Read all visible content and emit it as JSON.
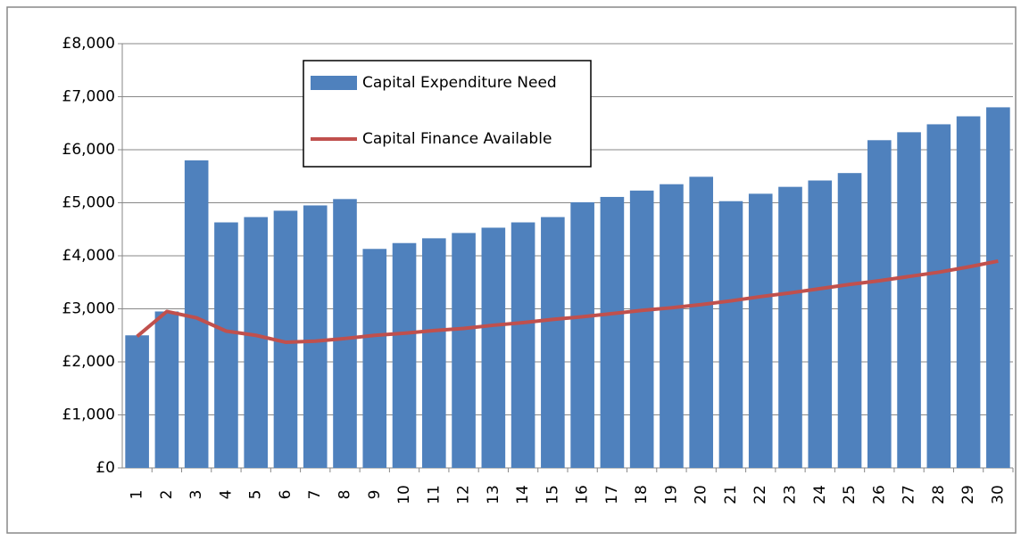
{
  "chart_data": {
    "type": "bar",
    "categories": [
      "1",
      "2",
      "3",
      "4",
      "5",
      "6",
      "7",
      "8",
      "9",
      "10",
      "11",
      "12",
      "13",
      "14",
      "15",
      "16",
      "17",
      "18",
      "19",
      "20",
      "21",
      "22",
      "23",
      "24",
      "25",
      "26",
      "27",
      "28",
      "29",
      "30"
    ],
    "series": [
      {
        "name": "Capital Expenditure Need",
        "type": "bar",
        "color": "#4f81bd",
        "values": [
          2500,
          2950,
          5800,
          4630,
          4730,
          4850,
          4950,
          5070,
          4130,
          4240,
          4330,
          4430,
          4530,
          4630,
          4730,
          5010,
          5110,
          5230,
          5350,
          5490,
          5030,
          5170,
          5300,
          5420,
          5560,
          6180,
          6330,
          6480,
          6630,
          6800
        ]
      },
      {
        "name": "Capital Finance Available",
        "type": "line",
        "color": "#c0504d",
        "values": [
          2480,
          2950,
          2830,
          2580,
          2500,
          2370,
          2390,
          2440,
          2500,
          2540,
          2590,
          2630,
          2690,
          2740,
          2800,
          2850,
          2910,
          2970,
          3020,
          3080,
          3150,
          3230,
          3300,
          3380,
          3460,
          3530,
          3610,
          3690,
          3790,
          3900
        ]
      }
    ],
    "ylim": [
      0,
      8000
    ],
    "yticks": [
      {
        "value": 0,
        "label": "£0"
      },
      {
        "value": 1000,
        "label": "£1,000"
      },
      {
        "value": 2000,
        "label": "£2,000"
      },
      {
        "value": 3000,
        "label": "£3,000"
      },
      {
        "value": 4000,
        "label": "£4,000"
      },
      {
        "value": 5000,
        "label": "£5,000"
      },
      {
        "value": 6000,
        "label": "£6,000"
      },
      {
        "value": 7000,
        "label": "£7,000"
      },
      {
        "value": 8000,
        "label": "£8,000"
      }
    ],
    "grid": true
  }
}
